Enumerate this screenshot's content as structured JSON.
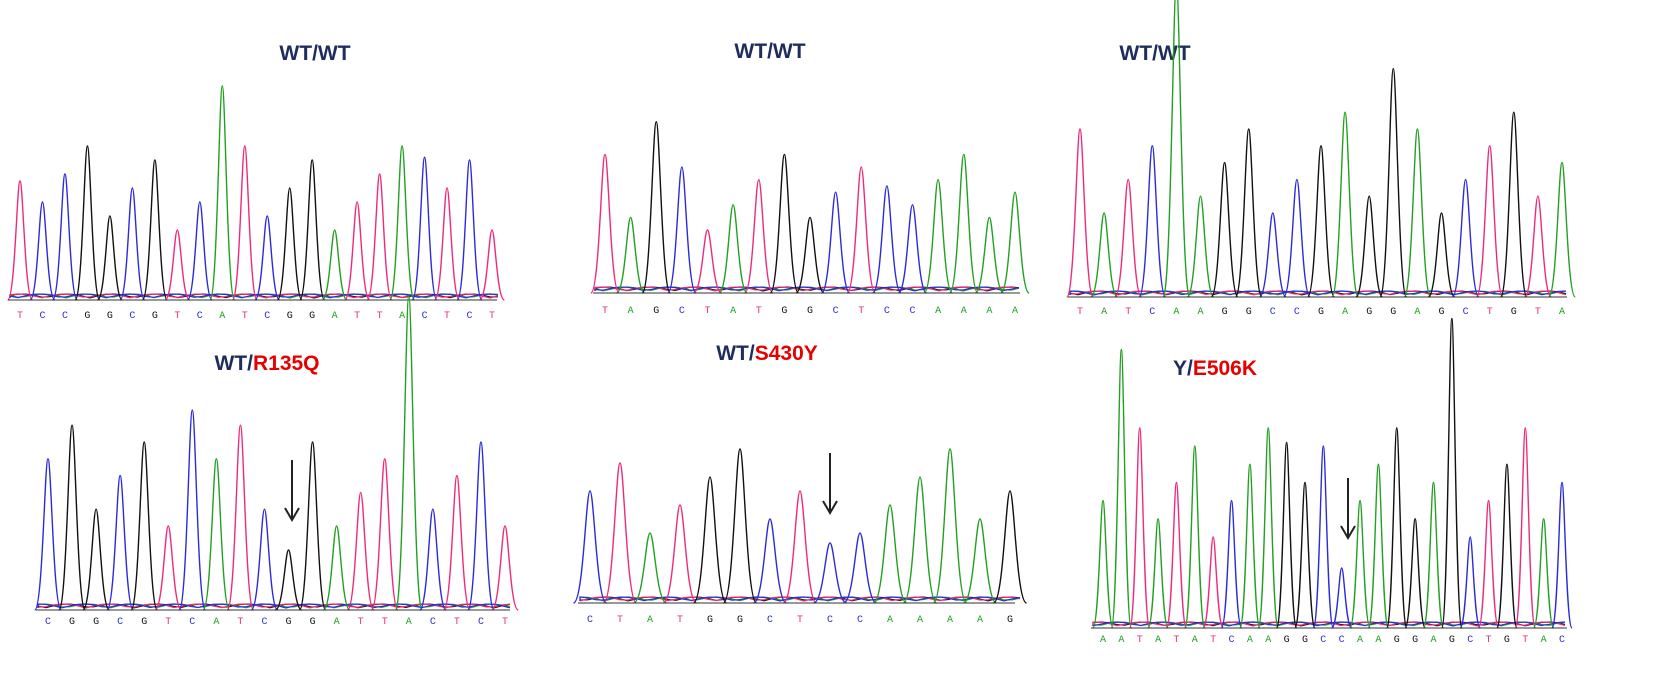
{
  "panels": [
    {
      "label": [
        {
          "text": "WT/WT",
          "color": "#1f2d5c"
        }
      ],
      "bases": "TCCGGCGTCATCGGATTACTCT"
    },
    {
      "label": [
        {
          "text": "WT/WT",
          "color": "#1f2d5c"
        }
      ],
      "bases": "TAGCTATGGCTCCAAAA"
    },
    {
      "label": [
        {
          "text": "WT/WT",
          "color": "#1f2d5c"
        }
      ],
      "bases": "TATCAAGGCCGAGGAGCTGTA"
    },
    {
      "label": [
        {
          "text": "WT/",
          "color": "#1f2d5c"
        },
        {
          "text": "R135Q",
          "color": "#e60000"
        }
      ],
      "bases": "CGGCGTCATCGGATTACTCT"
    },
    {
      "label": [
        {
          "text": "WT/",
          "color": "#1f2d5c"
        },
        {
          "text": "S430Y",
          "color": "#e60000"
        }
      ],
      "bases": "CTATGGCTCCAAAAG"
    },
    {
      "label": [
        {
          "text": "Y/",
          "color": "#1f2d5c"
        },
        {
          "text": "E506K",
          "color": "#e60000"
        }
      ],
      "bases": "AATATATCAAGGCCAAGGAGCTGTAC"
    }
  ],
  "base_colors": {
    "A": "#22a022",
    "C": "#2b2bd9",
    "G": "#111111",
    "T": "#ee2a7b"
  }
}
